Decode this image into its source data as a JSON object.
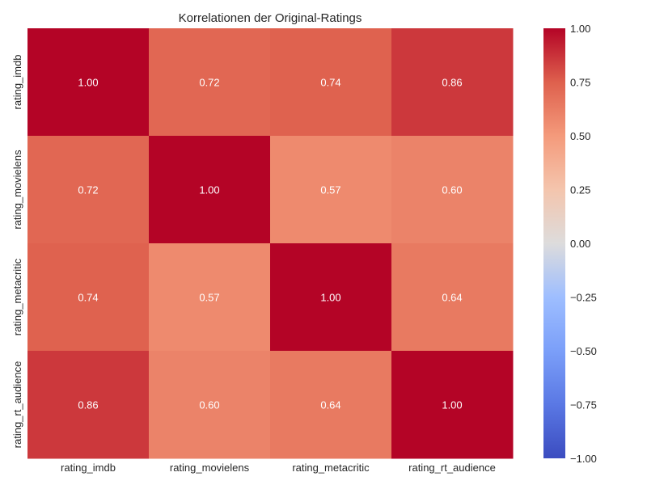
{
  "chart_data": {
    "type": "heatmap",
    "title": "Korrelationen der Original-Ratings",
    "xlabel": "",
    "ylabel": "",
    "x_categories": [
      "rating_imdb",
      "rating_movielens",
      "rating_metacritic",
      "rating_rt_audience"
    ],
    "y_categories": [
      "rating_imdb",
      "rating_movielens",
      "rating_metacritic",
      "rating_rt_audience"
    ],
    "values": [
      [
        1.0,
        0.72,
        0.74,
        0.86
      ],
      [
        0.72,
        1.0,
        0.57,
        0.6
      ],
      [
        0.74,
        0.57,
        1.0,
        0.64
      ],
      [
        0.86,
        0.6,
        0.64,
        1.0
      ]
    ],
    "cell_labels": [
      [
        "1.00",
        "0.72",
        "0.74",
        "0.86"
      ],
      [
        "0.72",
        "1.00",
        "0.57",
        "0.60"
      ],
      [
        "0.74",
        "0.57",
        "1.00",
        "0.64"
      ],
      [
        "0.86",
        "0.60",
        "0.64",
        "1.00"
      ]
    ],
    "colormap": "coolwarm",
    "vmin": -1.0,
    "vmax": 1.0,
    "colorbar_ticks": [
      "1.00",
      "0.75",
      "0.50",
      "0.25",
      "0.00",
      "−0.25",
      "−0.50",
      "−0.75",
      "−1.00"
    ],
    "colorbar_tick_values": [
      1.0,
      0.75,
      0.5,
      0.25,
      0.0,
      -0.25,
      -0.5,
      -0.75,
      -1.0
    ],
    "annotation_text_color": "#ffffff",
    "grid": false,
    "legend": "colorbar-right"
  }
}
